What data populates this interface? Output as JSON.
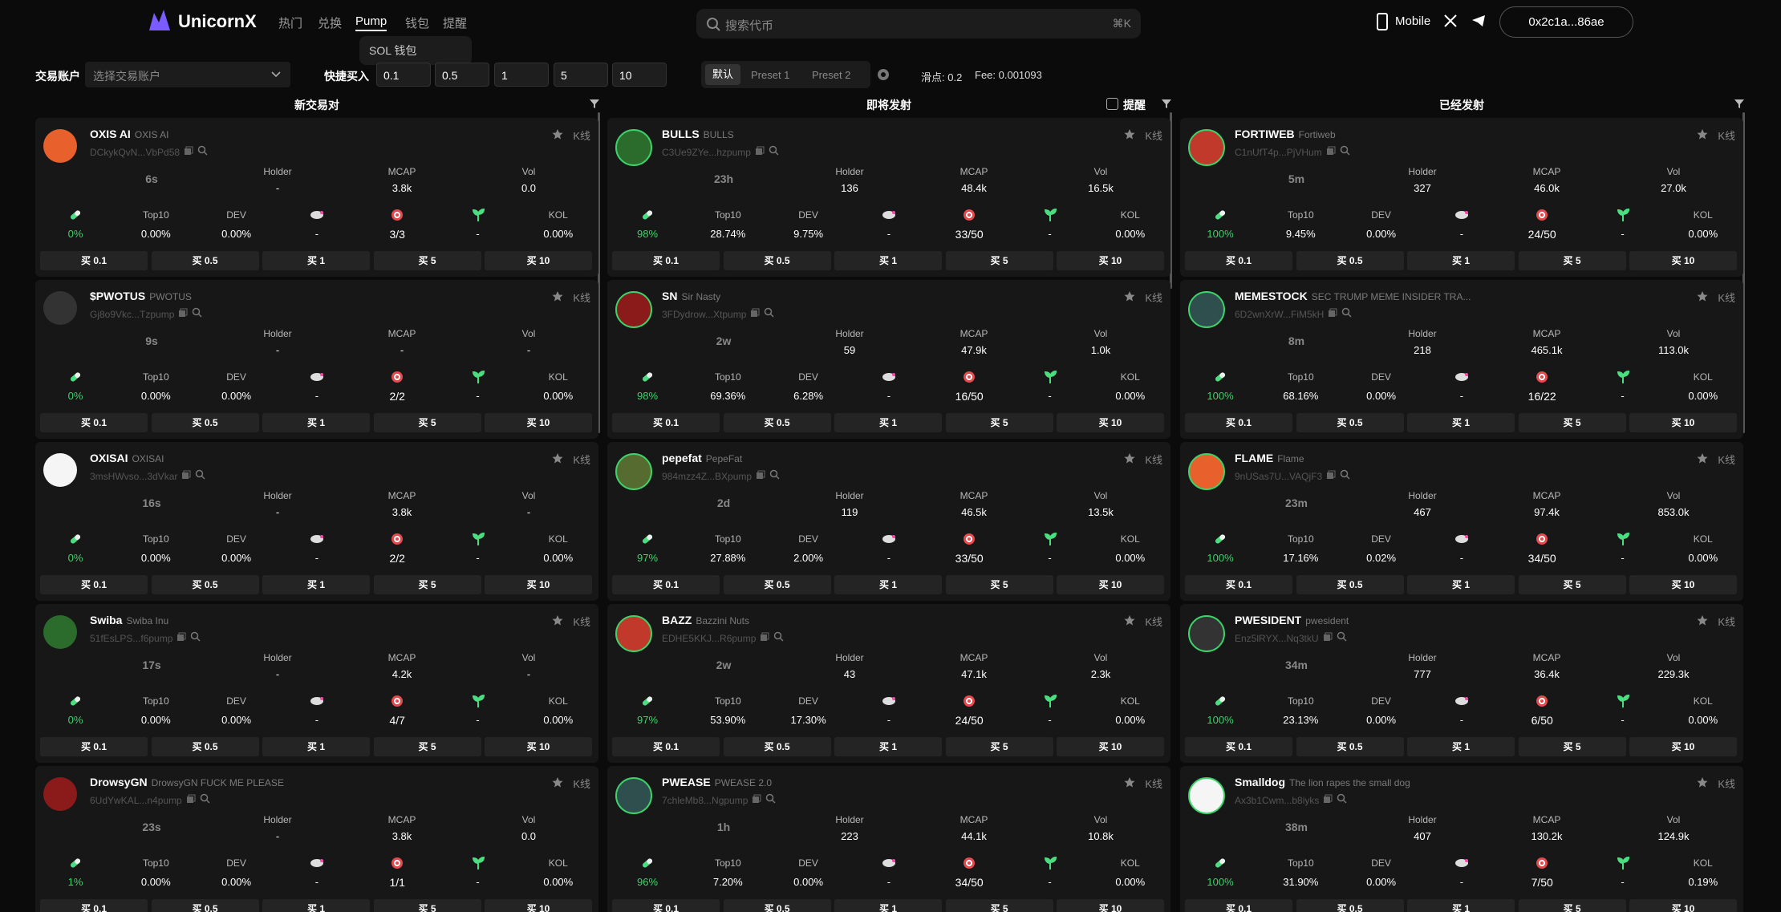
{
  "header": {
    "logo": "UnicornX",
    "nav": [
      "热门",
      "兑换",
      "Pump",
      "钱包",
      "提醒"
    ],
    "dropdown": "SOL 钱包",
    "search_placeholder": "搜索代币",
    "search_shortcut": "⌘K",
    "mobile": "Mobile",
    "wallet": "0x2c1a...86ae"
  },
  "toolbar": {
    "account_label": "交易账户",
    "account_placeholder": "选择交易账户",
    "quick_buy_label": "快捷买入",
    "quick_buy": [
      "0.1",
      "0.5",
      "1",
      "5",
      "10"
    ],
    "presets": [
      "默认",
      "Preset 1",
      "Preset 2"
    ],
    "slippage": "滑点: 0.2",
    "fee": "Fee: 0.001093"
  },
  "labels": {
    "holder": "Holder",
    "mcap": "MCAP",
    "vol": "Vol",
    "top10": "Top10",
    "dev": "DEV",
    "kol": "KOL",
    "kline": "K线",
    "buy": [
      "买 0.1",
      "买 0.5",
      "买 1",
      "买 5",
      "买 10"
    ]
  },
  "columns": [
    {
      "title": "新交易对",
      "tokens": [
        {
          "symbol": "OXIS AI",
          "name": "OXIS AI",
          "address": "DCkykQvN...VbPd58",
          "age": "6s",
          "holder": "-",
          "mcap": "3.8k",
          "vol": "0.0",
          "progress": "0%",
          "top10": "0.00%",
          "dev": "0.00%",
          "rat": "-",
          "sniper": "3/3",
          "sprout": "-",
          "kol": "0.00%"
        },
        {
          "symbol": "$PWOTUS",
          "name": "PWOTUS",
          "address": "Gj8o9Vkc...Tzpump",
          "age": "9s",
          "holder": "-",
          "mcap": "-",
          "vol": "-",
          "progress": "0%",
          "top10": "0.00%",
          "dev": "0.00%",
          "rat": "-",
          "sniper": "2/2",
          "sprout": "-",
          "kol": "0.00%"
        },
        {
          "symbol": "OXISAI",
          "name": "OXISAI",
          "address": "3msHWvso...3dVkar",
          "age": "16s",
          "holder": "-",
          "mcap": "3.8k",
          "vol": "-",
          "progress": "0%",
          "top10": "0.00%",
          "dev": "0.00%",
          "rat": "-",
          "sniper": "2/2",
          "sprout": "-",
          "kol": "0.00%"
        },
        {
          "symbol": "Swiba",
          "name": "Swiba Inu",
          "address": "51fEsLPS...f6pump",
          "age": "17s",
          "holder": "-",
          "mcap": "4.2k",
          "vol": "-",
          "progress": "0%",
          "top10": "0.00%",
          "dev": "0.00%",
          "rat": "-",
          "sniper": "4/7",
          "sprout": "-",
          "kol": "0.00%"
        },
        {
          "symbol": "DrowsyGN",
          "name": "DrowsyGN FUCK ME PLEASE",
          "address": "6UdYwKAL...n4pump",
          "age": "23s",
          "holder": "-",
          "mcap": "3.8k",
          "vol": "0.0",
          "progress": "1%",
          "top10": "0.00%",
          "dev": "0.00%",
          "rat": "-",
          "sniper": "1/1",
          "sprout": "-",
          "kol": "0.00%"
        }
      ]
    },
    {
      "title": "即将发射",
      "alert": "提醒",
      "tokens": [
        {
          "symbol": "BULLS",
          "name": "BULLS",
          "address": "C3Ue9ZYe...hzpump",
          "age": "23h",
          "holder": "136",
          "mcap": "48.4k",
          "vol": "16.5k",
          "progress": "98%",
          "top10": "28.74%",
          "dev": "9.75%",
          "rat": "-",
          "sniper": "33/50",
          "sprout": "-",
          "kol": "0.00%"
        },
        {
          "symbol": "SN",
          "name": "Sir Nasty",
          "address": "3FDydrow...Xtpump",
          "age": "2w",
          "holder": "59",
          "mcap": "47.9k",
          "vol": "1.0k",
          "progress": "98%",
          "top10": "69.36%",
          "dev": "6.28%",
          "rat": "-",
          "sniper": "16/50",
          "sprout": "-",
          "kol": "0.00%"
        },
        {
          "symbol": "pepefat",
          "name": "PepeFat",
          "address": "984mzz4Z...BXpump",
          "age": "2d",
          "holder": "119",
          "mcap": "46.5k",
          "vol": "13.5k",
          "progress": "97%",
          "top10": "27.88%",
          "dev": "2.00%",
          "rat": "-",
          "sniper": "33/50",
          "sprout": "-",
          "kol": "0.00%"
        },
        {
          "symbol": "BAZZ",
          "name": "Bazzini Nuts",
          "address": "EDHE5KKJ...R6pump",
          "age": "2w",
          "holder": "43",
          "mcap": "47.1k",
          "vol": "2.3k",
          "progress": "97%",
          "top10": "53.90%",
          "dev": "17.30%",
          "rat": "-",
          "sniper": "24/50",
          "sprout": "-",
          "kol": "0.00%"
        },
        {
          "symbol": "PWEASE",
          "name": "PWEASE 2.0",
          "address": "7chleMb8...Ngpump",
          "age": "1h",
          "holder": "223",
          "mcap": "44.1k",
          "vol": "10.8k",
          "progress": "96%",
          "top10": "7.20%",
          "dev": "0.00%",
          "rat": "-",
          "sniper": "34/50",
          "sprout": "-",
          "kol": "0.00%"
        }
      ]
    },
    {
      "title": "已经发射",
      "tokens": [
        {
          "symbol": "FORTIWEB",
          "name": "Fortiweb",
          "address": "C1nUfT4p...PjVHum",
          "age": "5m",
          "holder": "327",
          "mcap": "46.0k",
          "vol": "27.0k",
          "progress": "100%",
          "top10": "9.45%",
          "dev": "0.00%",
          "rat": "-",
          "sniper": "24/50",
          "sprout": "-",
          "kol": "0.00%"
        },
        {
          "symbol": "MEMESTOCK",
          "name": "SEC TRUMP MEME INSIDER TRA...",
          "address": "6D2wnXrW...FiM5kH",
          "age": "8m",
          "holder": "218",
          "mcap": "465.1k",
          "vol": "113.0k",
          "progress": "100%",
          "top10": "68.16%",
          "dev": "0.00%",
          "rat": "-",
          "sniper": "16/22",
          "sprout": "-",
          "kol": "0.00%"
        },
        {
          "symbol": "FLAME",
          "name": "Flame",
          "address": "9nUSas7U...VAQjF3",
          "age": "23m",
          "holder": "467",
          "mcap": "97.4k",
          "vol": "853.0k",
          "progress": "100%",
          "top10": "17.16%",
          "dev": "0.02%",
          "rat": "-",
          "sniper": "34/50",
          "sprout": "-",
          "kol": "0.00%"
        },
        {
          "symbol": "PWESIDENT",
          "name": "pwesident",
          "address": "Enz5lRYX...Nq3tkU",
          "age": "34m",
          "holder": "777",
          "mcap": "36.4k",
          "vol": "229.3k",
          "progress": "100%",
          "top10": "23.13%",
          "dev": "0.00%",
          "rat": "-",
          "sniper": "6/50",
          "sprout": "-",
          "kol": "0.00%"
        },
        {
          "symbol": "Smalldog",
          "name": "The lion rapes the small dog",
          "address": "Ax3b1Cwm...b8iyks",
          "age": "38m",
          "holder": "407",
          "mcap": "130.2k",
          "vol": "124.9k",
          "progress": "100%",
          "top10": "31.90%",
          "dev": "0.00%",
          "rat": "-",
          "sniper": "7/50",
          "sprout": "-",
          "kol": "0.19%"
        }
      ]
    }
  ]
}
